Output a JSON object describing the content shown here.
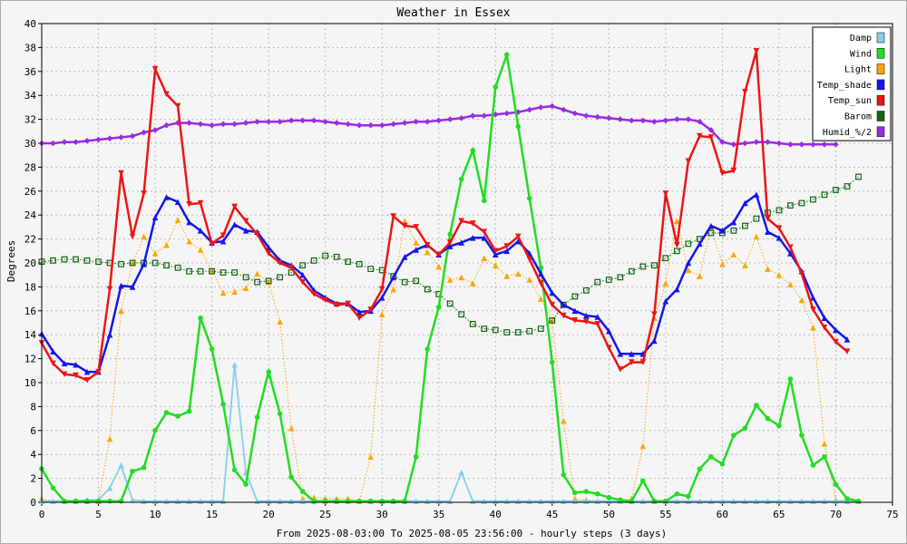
{
  "chart_data": {
    "type": "line",
    "title": "Weather in Essex",
    "xlabel": "From 2025-08-03:00 To 2025-08-05 23:56:00 - hourly steps (3 days)",
    "ylabel": "Degrees",
    "xlim": [
      0,
      75
    ],
    "ylim": [
      0,
      40
    ],
    "xticks": [
      0,
      5,
      10,
      15,
      20,
      25,
      30,
      35,
      40,
      45,
      50,
      55,
      60,
      65,
      70,
      75
    ],
    "yticks": [
      0,
      2,
      4,
      6,
      8,
      10,
      12,
      14,
      16,
      18,
      20,
      22,
      24,
      26,
      28,
      30,
      32,
      34,
      36,
      38,
      40
    ],
    "grid": true,
    "legend_position": "top-right",
    "series": [
      {
        "name": "Damp",
        "color": "#87ceeb",
        "style": "solid-thin",
        "marker": "triangle-up",
        "values": [
          0.1,
          0.1,
          0.1,
          0.1,
          0.2,
          0.2,
          1.2,
          3.1,
          0.2,
          0.1,
          0.1,
          0.1,
          0.1,
          0.1,
          0.1,
          0.1,
          0.1,
          11.5,
          2.5,
          0.1,
          0.1,
          0.1,
          0.1,
          0.1,
          0.1,
          0.1,
          0.1,
          0.1,
          0.1,
          0.1,
          0.1,
          0.1,
          0.1,
          0.1,
          0.1,
          0.1,
          0.1,
          2.5,
          0.1,
          0.1,
          0.1,
          0.1,
          0.1,
          0.1,
          0.1,
          0.1,
          0.1,
          0.1,
          0.1,
          0.1,
          0.1,
          0.1,
          0.1,
          0.1,
          0.1,
          0.1,
          0.1,
          0.1,
          0.1,
          0.1,
          0.1,
          0.1,
          0.1,
          0.1,
          0.1,
          0.1,
          0.1,
          0.1,
          0.1,
          0.1,
          0.1,
          0.1,
          0.1
        ]
      },
      {
        "name": "Wind",
        "color": "#22dd22",
        "style": "solid",
        "marker": "circle",
        "values": [
          2.8,
          1.2,
          0.1,
          0.1,
          0.1,
          0.1,
          0.1,
          0.1,
          2.6,
          2.9,
          6.0,
          7.5,
          7.2,
          7.6,
          15.4,
          12.8,
          8.2,
          2.7,
          1.5,
          7.1,
          10.9,
          7.4,
          2.1,
          0.9,
          0.1,
          0.1,
          0.1,
          0.1,
          0.1,
          0.1,
          0.1,
          0.1,
          0.1,
          3.8,
          12.8,
          16.3,
          22.4,
          27.0,
          29.4,
          25.2,
          34.7,
          37.4,
          31.4,
          25.4,
          19.6,
          11.7,
          2.3,
          0.8,
          0.9,
          0.7,
          0.4,
          0.2,
          0.1,
          1.8,
          0.1,
          0.1,
          0.7,
          0.5,
          2.8,
          3.8,
          3.2,
          5.6,
          6.2,
          8.1,
          7.0,
          6.4,
          10.3,
          5.6,
          3.1,
          3.8,
          1.5,
          0.3,
          0.1
        ]
      },
      {
        "name": "Light",
        "color": "#ffa500",
        "style": "dotted",
        "marker": "triangle-up",
        "values": [
          0.3,
          0.1,
          0.1,
          0.1,
          0.1,
          0.1,
          5.3,
          16.0,
          20.0,
          22.2,
          20.8,
          21.5,
          23.6,
          21.8,
          21.1,
          19.4,
          17.5,
          17.6,
          17.9,
          19.1,
          18.4,
          15.1,
          6.2,
          0.3,
          0.4,
          0.3,
          0.3,
          0.3,
          0.1,
          3.8,
          15.7,
          17.8,
          23.5,
          21.7,
          20.9,
          19.7,
          18.6,
          18.8,
          18.3,
          20.4,
          19.8,
          18.9,
          19.1,
          18.6,
          17.0,
          15.2,
          6.8,
          0.3,
          0.2,
          0.1,
          0.1,
          0.1,
          0.3,
          4.7,
          15.4,
          18.3,
          23.5,
          19.4,
          18.9,
          23.0,
          19.9,
          20.7,
          19.8,
          22.2,
          19.5,
          19.0,
          18.2,
          16.9,
          14.6,
          4.9,
          0.2,
          0.1
        ]
      },
      {
        "name": "Temp_shade",
        "color": "#1515ee",
        "style": "solid",
        "marker": "triangle-up",
        "values": [
          14.1,
          12.6,
          11.6,
          11.5,
          10.9,
          10.9,
          14.0,
          18.1,
          18.0,
          19.9,
          23.8,
          25.5,
          25.1,
          23.4,
          22.7,
          21.7,
          21.8,
          23.2,
          22.7,
          22.6,
          21.3,
          20.2,
          19.8,
          19.0,
          17.7,
          17.1,
          16.6,
          16.6,
          15.9,
          16.0,
          17.1,
          18.8,
          20.5,
          21.1,
          21.5,
          20.7,
          21.4,
          21.7,
          22.1,
          22.1,
          20.7,
          21.0,
          21.8,
          20.8,
          19.1,
          17.5,
          16.5,
          16.0,
          15.6,
          15.5,
          14.3,
          12.4,
          12.4,
          12.4,
          13.5,
          16.8,
          17.8,
          20.0,
          21.6,
          23.1,
          22.7,
          23.4,
          25.0,
          25.7,
          22.6,
          22.1,
          20.8,
          19.3,
          17.1,
          15.4,
          14.4,
          13.6
        ]
      },
      {
        "name": "Temp_sun",
        "color": "#ee1515",
        "style": "solid",
        "marker": "triangle-down",
        "values": [
          13.3,
          11.6,
          10.7,
          10.6,
          10.2,
          10.9,
          17.8,
          27.5,
          22.2,
          25.8,
          36.2,
          34.1,
          33.1,
          24.9,
          25.0,
          21.6,
          22.3,
          24.7,
          23.5,
          22.4,
          20.8,
          20.0,
          19.6,
          18.4,
          17.4,
          16.9,
          16.5,
          16.6,
          15.4,
          16.1,
          17.8,
          23.9,
          23.1,
          23.0,
          21.5,
          20.7,
          21.7,
          23.5,
          23.3,
          22.6,
          21.0,
          21.4,
          22.2,
          20.3,
          18.3,
          16.5,
          15.6,
          15.2,
          15.1,
          14.9,
          12.9,
          11.1,
          11.7,
          11.7,
          15.7,
          25.8,
          21.5,
          28.5,
          30.6,
          30.5,
          27.5,
          27.7,
          34.3,
          37.7,
          23.7,
          22.9,
          21.3,
          19.1,
          16.1,
          14.6,
          13.4,
          12.6
        ]
      },
      {
        "name": "Barom",
        "color": "#116611",
        "style": "dotted",
        "marker": "square",
        "values": [
          20.1,
          20.2,
          20.3,
          20.3,
          20.2,
          20.1,
          20.0,
          19.9,
          20.0,
          20.0,
          20.0,
          19.8,
          19.6,
          19.3,
          19.3,
          19.3,
          19.2,
          19.2,
          18.8,
          18.4,
          18.5,
          18.8,
          19.2,
          19.8,
          20.2,
          20.6,
          20.5,
          20.1,
          19.9,
          19.5,
          19.4,
          18.9,
          18.4,
          18.5,
          17.8,
          17.4,
          16.6,
          15.7,
          14.9,
          14.5,
          14.4,
          14.2,
          14.2,
          14.3,
          14.5,
          15.2,
          16.5,
          17.2,
          17.7,
          18.4,
          18.6,
          18.8,
          19.3,
          19.7,
          19.8,
          20.4,
          21.0,
          21.6,
          22.0,
          22.5,
          22.5,
          22.7,
          23.1,
          23.7,
          24.2,
          24.4,
          24.8,
          25.0,
          25.3,
          25.7,
          26.1,
          26.4,
          27.2
        ]
      },
      {
        "name": "Humid_%/2",
        "color": "#9a2be2",
        "style": "solid",
        "marker": "diamond",
        "values": [
          30.0,
          30.0,
          30.1,
          30.1,
          30.2,
          30.3,
          30.4,
          30.5,
          30.6,
          30.9,
          31.1,
          31.5,
          31.7,
          31.7,
          31.6,
          31.5,
          31.6,
          31.6,
          31.7,
          31.8,
          31.8,
          31.8,
          31.9,
          31.9,
          31.9,
          31.8,
          31.7,
          31.6,
          31.5,
          31.5,
          31.5,
          31.6,
          31.7,
          31.8,
          31.8,
          31.9,
          32.0,
          32.1,
          32.3,
          32.3,
          32.4,
          32.5,
          32.6,
          32.8,
          33.0,
          33.1,
          32.8,
          32.5,
          32.3,
          32.2,
          32.1,
          32.0,
          31.9,
          31.9,
          31.8,
          31.9,
          32.0,
          32.0,
          31.8,
          31.1,
          30.1,
          29.9,
          30.0,
          30.1,
          30.1,
          30.0,
          29.9,
          29.9,
          29.9,
          29.9,
          29.9
        ]
      }
    ]
  }
}
